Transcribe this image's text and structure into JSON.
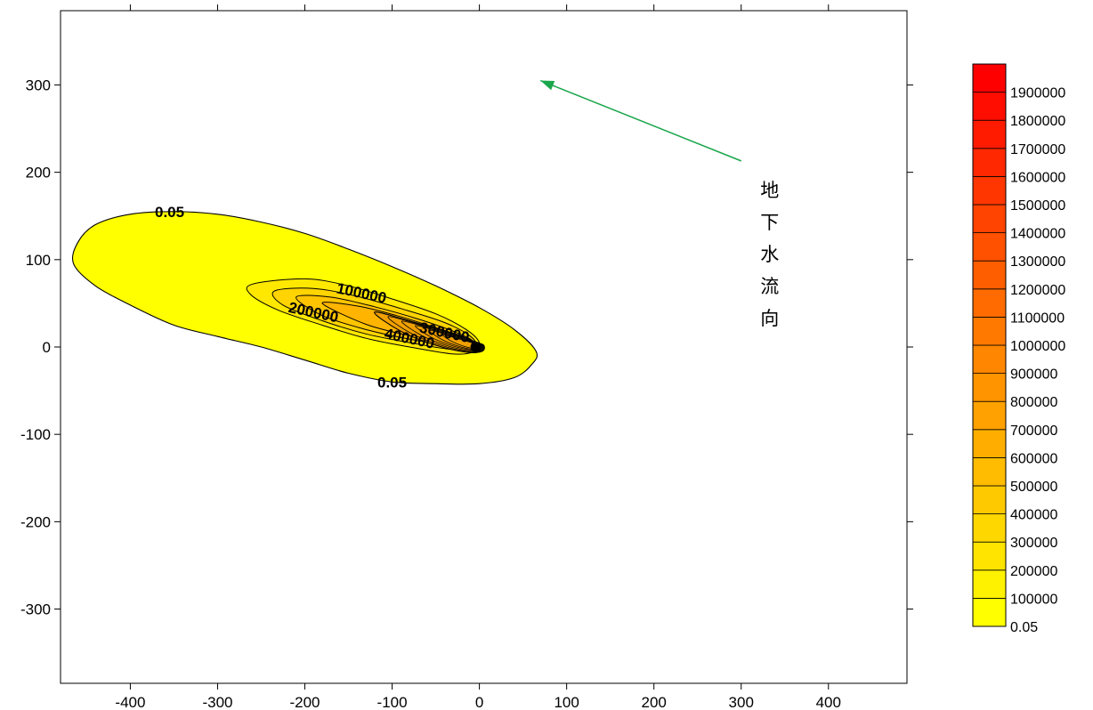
{
  "chart_data": {
    "type": "contour",
    "x_ticks": [
      -400,
      -300,
      -200,
      -100,
      0,
      100,
      200,
      300,
      400
    ],
    "y_ticks": [
      -300,
      -200,
      -100,
      0,
      100,
      200,
      300
    ],
    "xlim": [
      -480,
      490
    ],
    "ylim": [
      -385,
      385
    ],
    "grid": false,
    "contour_levels": [
      0.05,
      100000,
      200000,
      300000,
      400000,
      500000,
      600000,
      700000,
      800000,
      900000,
      1000000,
      1100000,
      1200000,
      1300000,
      1400000,
      1500000,
      1600000,
      1700000,
      1800000,
      1900000
    ],
    "colorbar": {
      "placement": "right",
      "labels": [
        "0.05",
        "100000",
        "200000",
        "300000",
        "400000",
        "500000",
        "600000",
        "700000",
        "800000",
        "900000",
        "1000000",
        "1100000",
        "1200000",
        "1300000",
        "1400000",
        "1500000",
        "1600000",
        "1700000",
        "1800000",
        "1900000"
      ],
      "color_low": "#ffff00",
      "color_high": "#ff0000"
    },
    "contour_labels": [
      {
        "text": "0.05",
        "x": -355,
        "y": 155
      },
      {
        "text": "0.05",
        "x": -100,
        "y": -40
      },
      {
        "text": "100000",
        "x": -135,
        "y": 62
      },
      {
        "text": "200000",
        "x": -190,
        "y": 40
      },
      {
        "text": "300000",
        "x": -40,
        "y": 17
      },
      {
        "text": "400000",
        "x": -80,
        "y": 10
      }
    ],
    "plume": {
      "source": [
        0,
        0
      ],
      "shape_0_05": [
        [
          -460,
          120
        ],
        [
          -440,
          140
        ],
        [
          -400,
          152
        ],
        [
          -350,
          155
        ],
        [
          -300,
          152
        ],
        [
          -250,
          143
        ],
        [
          -200,
          130
        ],
        [
          -150,
          112
        ],
        [
          -100,
          92
        ],
        [
          -50,
          70
        ],
        [
          0,
          45
        ],
        [
          40,
          20
        ],
        [
          65,
          -5
        ],
        [
          60,
          -20
        ],
        [
          40,
          -35
        ],
        [
          0,
          -42
        ],
        [
          -50,
          -42
        ],
        [
          -100,
          -40
        ],
        [
          -150,
          -30
        ],
        [
          -200,
          -15
        ],
        [
          -250,
          0
        ],
        [
          -300,
          12
        ],
        [
          -350,
          25
        ],
        [
          -400,
          48
        ],
        [
          -440,
          70
        ],
        [
          -465,
          95
        ]
      ],
      "inner_ring_100000": [
        [
          -260,
          72
        ],
        [
          -200,
          78
        ],
        [
          -150,
          70
        ],
        [
          -100,
          55
        ],
        [
          -50,
          38
        ],
        [
          -15,
          20
        ],
        [
          0,
          5
        ],
        [
          -5,
          -5
        ],
        [
          -30,
          -8
        ],
        [
          -80,
          0
        ],
        [
          -130,
          10
        ],
        [
          -180,
          25
        ],
        [
          -230,
          42
        ],
        [
          -262,
          60
        ]
      ],
      "inner_ring_200000": [
        [
          -235,
          64
        ],
        [
          -190,
          67
        ],
        [
          -140,
          58
        ],
        [
          -90,
          44
        ],
        [
          -40,
          28
        ],
        [
          -10,
          12
        ],
        [
          -5,
          0
        ],
        [
          -30,
          -3
        ],
        [
          -80,
          5
        ],
        [
          -130,
          15
        ],
        [
          -180,
          30
        ],
        [
          -225,
          48
        ]
      ],
      "inner_ring_300000": [
        [
          -210,
          57
        ],
        [
          -170,
          57
        ],
        [
          -120,
          46
        ],
        [
          -70,
          32
        ],
        [
          -25,
          16
        ],
        [
          -8,
          6
        ],
        [
          -30,
          2
        ],
        [
          -80,
          9
        ],
        [
          -130,
          20
        ],
        [
          -180,
          36
        ]
      ],
      "inner_ring_400000": [
        [
          -180,
          50
        ],
        [
          -140,
          47
        ],
        [
          -95,
          36
        ],
        [
          -50,
          22
        ],
        [
          -15,
          10
        ],
        [
          -35,
          5
        ],
        [
          -80,
          13
        ],
        [
          -130,
          26
        ]
      ],
      "core": [
        [
          -120,
          40
        ],
        [
          -70,
          27
        ],
        [
          -25,
          14
        ],
        [
          -5,
          6
        ],
        [
          5,
          2
        ],
        [
          3,
          -5
        ],
        [
          -15,
          -6
        ],
        [
          -50,
          2
        ],
        [
          -90,
          18
        ]
      ]
    },
    "annotation": {
      "text": "地下水流向",
      "arrow_from": [
        300,
        213
      ],
      "arrow_to": [
        70,
        305
      ],
      "color": "#1aa64b"
    }
  }
}
